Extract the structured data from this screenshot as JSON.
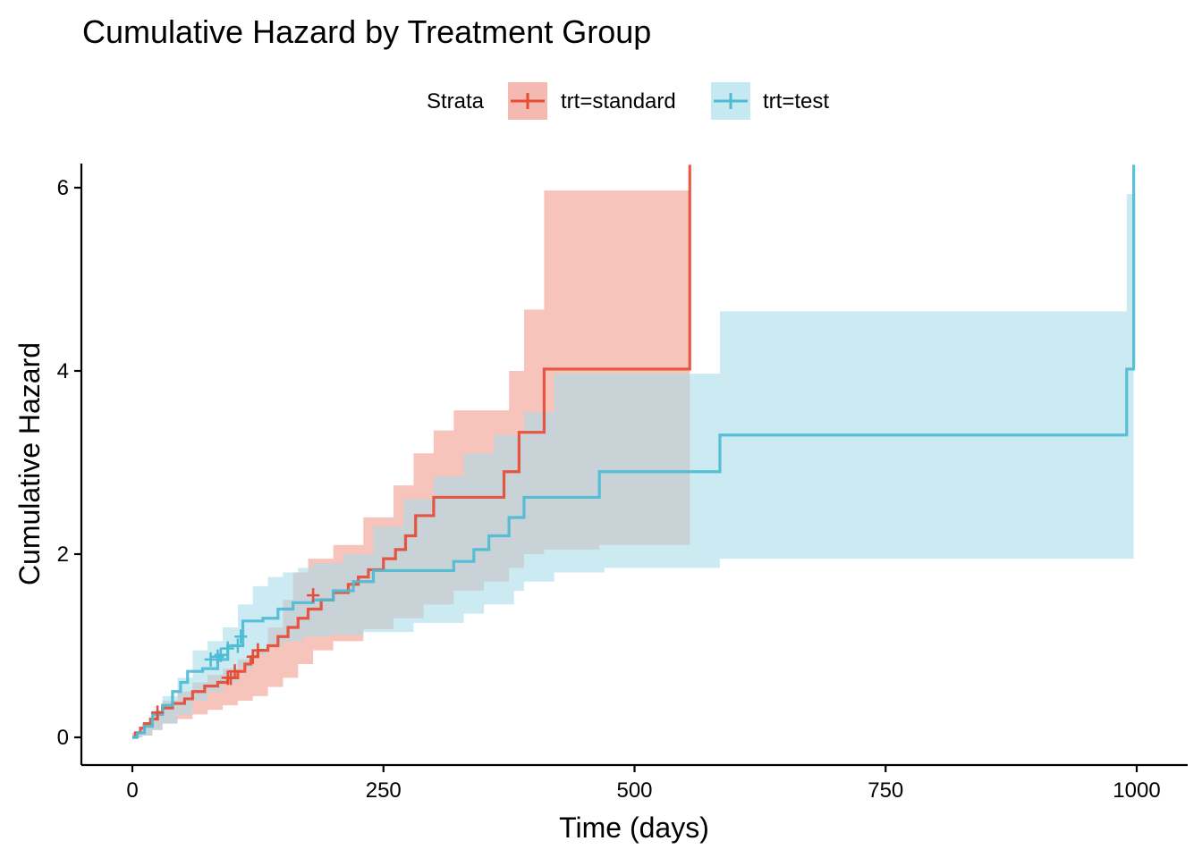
{
  "chart_data": {
    "type": "line",
    "title": "Cumulative Hazard by Treatment Group",
    "xlabel": "Time (days)",
    "ylabel": "Cumulative Hazard",
    "xlim": [
      -50,
      1050
    ],
    "ylim": [
      -0.3,
      6.25
    ],
    "x_ticks": [
      0,
      250,
      500,
      750,
      1000
    ],
    "x_tick_labels": [
      "0",
      "250",
      "500",
      "750",
      "1000"
    ],
    "y_ticks": [
      0,
      2,
      4,
      6
    ],
    "y_tick_labels": [
      "0",
      "2",
      "4",
      "6"
    ],
    "grid": false,
    "legend": {
      "title": "Strata",
      "placement": "top",
      "entries": [
        "trt=standard",
        "trt=test"
      ]
    },
    "series": [
      {
        "name": "trt=standard",
        "color": "#E64B35",
        "ribbon_color": "#F08A7A",
        "step": {
          "x": [
            0,
            3,
            8,
            12,
            18,
            25,
            30,
            40,
            52,
            60,
            72,
            85,
            95,
            105,
            112,
            118,
            125,
            135,
            145,
            155,
            165,
            175,
            188,
            200,
            215,
            225,
            235,
            250,
            262,
            272,
            282,
            300,
            315,
            340,
            370,
            385,
            392,
            410,
            555
          ],
          "y": [
            0,
            0.05,
            0.1,
            0.15,
            0.2,
            0.27,
            0.32,
            0.37,
            0.42,
            0.5,
            0.56,
            0.6,
            0.65,
            0.72,
            0.8,
            0.88,
            0.95,
            1.0,
            1.1,
            1.2,
            1.3,
            1.4,
            1.5,
            1.58,
            1.67,
            1.75,
            1.83,
            1.95,
            2.05,
            2.2,
            2.42,
            2.62,
            2.62,
            2.62,
            2.9,
            3.33,
            3.33,
            4.02,
            6.25
          ]
        },
        "upper": {
          "x": [
            0,
            10,
            20,
            30,
            45,
            60,
            75,
            90,
            105,
            120,
            135,
            150,
            160,
            175,
            200,
            230,
            260,
            280,
            300,
            320,
            350,
            375,
            390,
            410,
            465,
            555
          ],
          "y": [
            0.05,
            0.15,
            0.28,
            0.4,
            0.5,
            0.6,
            0.68,
            0.75,
            0.85,
            0.95,
            1.2,
            1.5,
            1.8,
            1.95,
            2.1,
            2.4,
            2.75,
            3.1,
            3.35,
            3.57,
            3.57,
            4.0,
            4.67,
            5.97,
            5.97,
            5.97
          ]
        },
        "lower": {
          "x": [
            0,
            10,
            20,
            30,
            45,
            60,
            75,
            90,
            105,
            120,
            135,
            150,
            165,
            180,
            200,
            230,
            260,
            290,
            320,
            350,
            375,
            390,
            410,
            465,
            555
          ],
          "y": [
            0,
            0.02,
            0.08,
            0.15,
            0.2,
            0.25,
            0.3,
            0.35,
            0.4,
            0.45,
            0.55,
            0.65,
            0.8,
            0.95,
            1.05,
            1.18,
            1.3,
            1.45,
            1.6,
            1.7,
            1.85,
            2.0,
            2.05,
            2.1,
            2.1
          ]
        },
        "censor": {
          "x": [
            25,
            95,
            98,
            102,
            120,
            125,
            180
          ],
          "y": [
            0.27,
            0.65,
            0.65,
            0.72,
            0.88,
            0.95,
            1.55
          ]
        }
      },
      {
        "name": "trt=test",
        "color": "#4DBBD5",
        "ribbon_color": "#A8DCE9",
        "step": {
          "x": [
            0,
            5,
            12,
            20,
            30,
            40,
            48,
            55,
            70,
            85,
            95,
            110,
            130,
            145,
            160,
            180,
            200,
            220,
            240,
            260,
            290,
            320,
            340,
            355,
            375,
            390,
            420,
            465,
            530,
            585,
            700,
            800,
            900,
            990,
            997
          ],
          "y": [
            0,
            0.05,
            0.12,
            0.25,
            0.35,
            0.5,
            0.6,
            0.72,
            0.75,
            0.85,
            1.0,
            1.27,
            1.3,
            1.4,
            1.47,
            1.5,
            1.6,
            1.7,
            1.82,
            1.82,
            1.82,
            1.92,
            2.05,
            2.2,
            2.4,
            2.62,
            2.62,
            2.9,
            2.9,
            3.3,
            3.3,
            3.3,
            3.3,
            4.02,
            6.25
          ]
        },
        "upper": {
          "x": [
            0,
            10,
            20,
            30,
            45,
            60,
            75,
            90,
            105,
            120,
            135,
            150,
            165,
            180,
            210,
            240,
            270,
            300,
            330,
            360,
            390,
            420,
            470,
            555,
            585,
            990,
            997
          ],
          "y": [
            0.05,
            0.15,
            0.3,
            0.45,
            0.65,
            0.95,
            1.05,
            1.2,
            1.45,
            1.65,
            1.75,
            1.8,
            1.85,
            1.9,
            2.0,
            2.3,
            2.6,
            2.85,
            3.1,
            3.3,
            3.55,
            3.97,
            3.97,
            3.97,
            4.65,
            5.93,
            6.25
          ]
        },
        "lower": {
          "x": [
            0,
            10,
            20,
            30,
            45,
            60,
            75,
            90,
            105,
            120,
            135,
            150,
            170,
            195,
            230,
            280,
            330,
            350,
            380,
            390,
            420,
            470,
            585,
            990,
            997
          ],
          "y": [
            0,
            0.02,
            0.08,
            0.15,
            0.25,
            0.4,
            0.5,
            0.6,
            0.75,
            0.9,
            1.0,
            1.05,
            1.1,
            1.12,
            1.15,
            1.25,
            1.35,
            1.45,
            1.6,
            1.7,
            1.8,
            1.85,
            1.95,
            1.95,
            2.0
          ]
        },
        "censor": {
          "x": [
            78,
            85,
            88,
            95,
            105,
            108
          ],
          "y": [
            0.85,
            0.88,
            0.9,
            0.97,
            1.0,
            1.1
          ]
        }
      }
    ]
  }
}
